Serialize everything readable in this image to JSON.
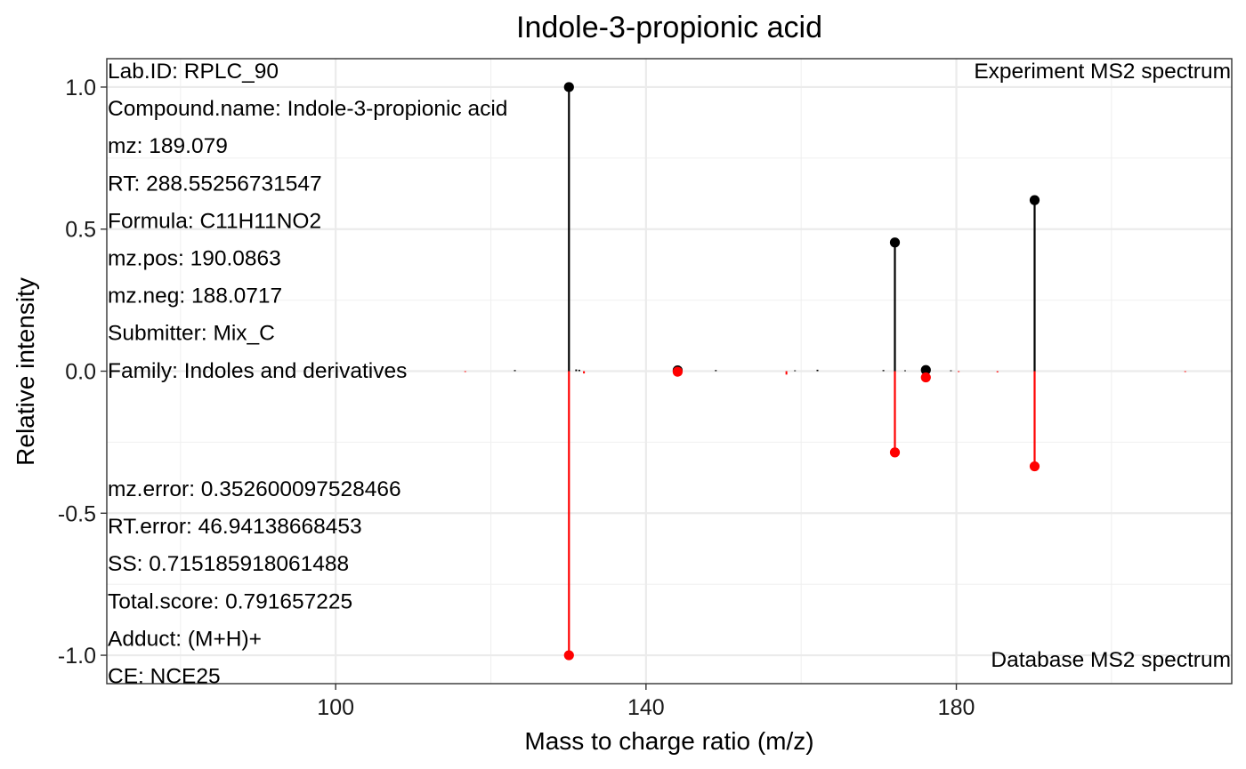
{
  "chart_data": {
    "type": "scatter",
    "title": "Indole-3-propionic acid",
    "xlabel": "Mass to charge ratio (m/z)",
    "ylabel": "Relative intensity",
    "xlim": [
      70.5,
      215.5
    ],
    "ylim": [
      -1.1,
      1.1
    ],
    "xticks": [
      100,
      140,
      180
    ],
    "xtick_labels": [
      "100",
      "140",
      "180"
    ],
    "yticks": [
      1.0,
      0.5,
      0.0,
      -0.5,
      -1.0
    ],
    "ytick_labels": [
      "1.0",
      "0.5",
      "0.0",
      "-0.5",
      "-1.0"
    ],
    "grid": true,
    "colors": {
      "experiment": "#000000",
      "database": "#ff0000"
    },
    "corner_labels": {
      "experiment": "Experiment MS2 spectrum",
      "database": "Database MS2 spectrum"
    },
    "series": [
      {
        "name": "Experiment MS2 spectrum",
        "color": "#000000",
        "points": [
          {
            "x": 130.07,
            "y": 1.0
          },
          {
            "x": 144.08,
            "y": 0.003
          },
          {
            "x": 172.08,
            "y": 0.453
          },
          {
            "x": 176.07,
            "y": 0.004
          },
          {
            "x": 190.09,
            "y": 0.602
          }
        ],
        "noise": [
          {
            "x": 123.1,
            "y": 0.004
          },
          {
            "x": 131.0,
            "y": 0.006
          },
          {
            "x": 131.4,
            "y": 0.005
          },
          {
            "x": 149.0,
            "y": 0.004
          },
          {
            "x": 159.2,
            "y": 0.003
          },
          {
            "x": 162.1,
            "y": 0.005
          },
          {
            "x": 170.6,
            "y": 0.004
          },
          {
            "x": 173.4,
            "y": 0.003
          },
          {
            "x": 179.3,
            "y": 0.003
          }
        ]
      },
      {
        "name": "Database MS2 spectrum",
        "color": "#ff0000",
        "points": [
          {
            "x": 130.07,
            "y": -1.0
          },
          {
            "x": 144.08,
            "y": -0.002
          },
          {
            "x": 172.08,
            "y": -0.286
          },
          {
            "x": 176.07,
            "y": -0.022
          },
          {
            "x": 190.09,
            "y": -0.335
          }
        ],
        "noise": [
          {
            "x": 116.7,
            "y": -0.003
          },
          {
            "x": 132.0,
            "y": -0.008
          },
          {
            "x": 158.1,
            "y": -0.012
          },
          {
            "x": 180.3,
            "y": -0.003
          },
          {
            "x": 185.3,
            "y": -0.004
          },
          {
            "x": 209.5,
            "y": -0.003
          }
        ]
      }
    ]
  },
  "info_top": [
    "Lab.ID: RPLC_90",
    "Compound.name: Indole-3-propionic acid",
    "mz: 189.079",
    "RT: 288.55256731547",
    "Formula: C11H11NO2",
    "mz.pos: 190.0863",
    "mz.neg: 188.0717",
    "Submitter: Mix_C",
    "Family: Indoles and derivatives"
  ],
  "info_bottom": [
    "mz.error: 0.352600097528466",
    "RT.error: 46.94138668453",
    "SS: 0.715185918061488",
    "Total.score: 0.791657225",
    "Adduct: (M+H)+",
    "CE: NCE25"
  ]
}
